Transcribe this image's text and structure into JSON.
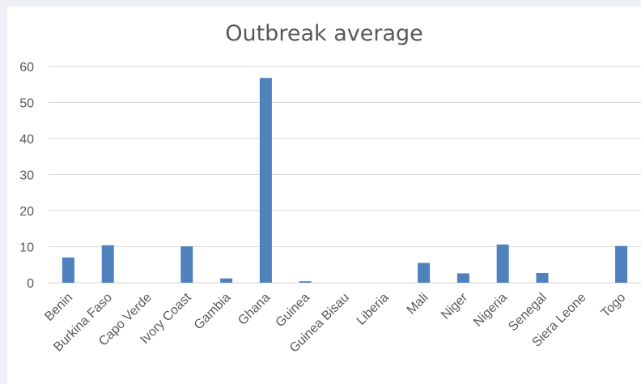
{
  "chart_data": {
    "type": "bar",
    "title": "Outbreak average",
    "xlabel": "",
    "ylabel": "",
    "ylim": [
      0,
      60
    ],
    "yticks": [
      0,
      10,
      20,
      30,
      40,
      50,
      60
    ],
    "grid": true,
    "legend": "none",
    "bar_color": "#4f81bd",
    "categories": [
      "Benin",
      "Burkina Faso",
      "Capo Verde",
      "Ivory Coast",
      "Gambia",
      "Ghana",
      "Guinea",
      "Guinea Bisau",
      "Liberia",
      "Mali",
      "Niger",
      "Nigeria",
      "Senegal",
      "Siera Leone",
      "Togo"
    ],
    "values": [
      7.0,
      10.4,
      0,
      10.1,
      1.2,
      56.8,
      0.4,
      0,
      0,
      5.5,
      2.6,
      10.6,
      2.7,
      0,
      10.2
    ]
  }
}
